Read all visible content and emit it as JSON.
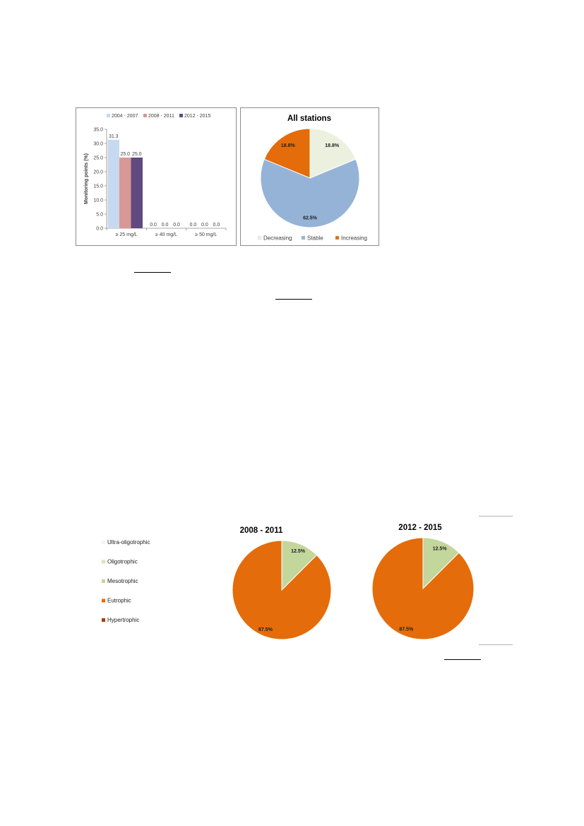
{
  "chart_data": [
    {
      "type": "bar",
      "title": "",
      "xlabel": "",
      "ylabel": "Monitoring points (%)",
      "ylim": [
        0,
        35
      ],
      "yticks": [
        "0.0",
        "5.0",
        "10.0",
        "15.0",
        "20.0",
        "25.0",
        "30.0",
        "35.0"
      ],
      "categories": [
        "≥ 25 mg/L",
        "≥ 40 mg/L",
        "≥ 50 mg/L"
      ],
      "legend_position": "top",
      "grid": false,
      "series": [
        {
          "name": "2004 - 2007",
          "color": "#c6d9f1",
          "values": [
            31.3,
            0.0,
            0.0
          ],
          "labels": [
            "31.3",
            "0.0",
            "0.0"
          ]
        },
        {
          "name": "2008 - 2011",
          "color": "#d99795",
          "values": [
            25.0,
            0.0,
            0.0
          ],
          "labels": [
            "25.0",
            "0.0",
            "0.0"
          ]
        },
        {
          "name": "2012 - 2015",
          "color": "#5f4b7f",
          "values": [
            25.0,
            0.0,
            0.0
          ],
          "labels": [
            "25.0",
            "0.0",
            "0.0"
          ]
        }
      ]
    },
    {
      "type": "pie",
      "title": "All stations",
      "legend_position": "bottom",
      "slices": [
        {
          "name": "Decreasing",
          "value": 18.8,
          "label": "18.8%",
          "color": "#ebf1de"
        },
        {
          "name": "Stable",
          "value": 62.5,
          "label": "62.5%",
          "color": "#95b3d7"
        },
        {
          "name": "Increasing",
          "value": 18.8,
          "label": "18.8%",
          "color": "#e46c0a"
        }
      ]
    },
    {
      "type": "pie",
      "title": "2008 - 2011",
      "slices": [
        {
          "name": "Mesotrophic",
          "value": 12.5,
          "label": "12.5%",
          "color": "#c3d69b"
        },
        {
          "name": "Eutrophic",
          "value": 87.5,
          "label": "87.5%",
          "color": "#e46c0a"
        }
      ]
    },
    {
      "type": "pie",
      "title": "2012 - 2015",
      "slices": [
        {
          "name": "Mesotrophic",
          "value": 12.5,
          "label": "12.5%",
          "color": "#c3d69b"
        },
        {
          "name": "Eutrophic",
          "value": 87.5,
          "label": "87.5%",
          "color": "#e46c0a"
        }
      ]
    }
  ],
  "trophic_legend": {
    "position": "left",
    "items": [
      {
        "name": "Ultra-oligotrophic",
        "color": "#f2f5ea"
      },
      {
        "name": "Oligotrophic",
        "color": "#d7e4bd"
      },
      {
        "name": "Mesotrophic",
        "color": "#c3d69b"
      },
      {
        "name": "Eutrophic",
        "color": "#e46c0a"
      },
      {
        "name": "Hypertrophic",
        "color": "#a0400a"
      }
    ]
  }
}
